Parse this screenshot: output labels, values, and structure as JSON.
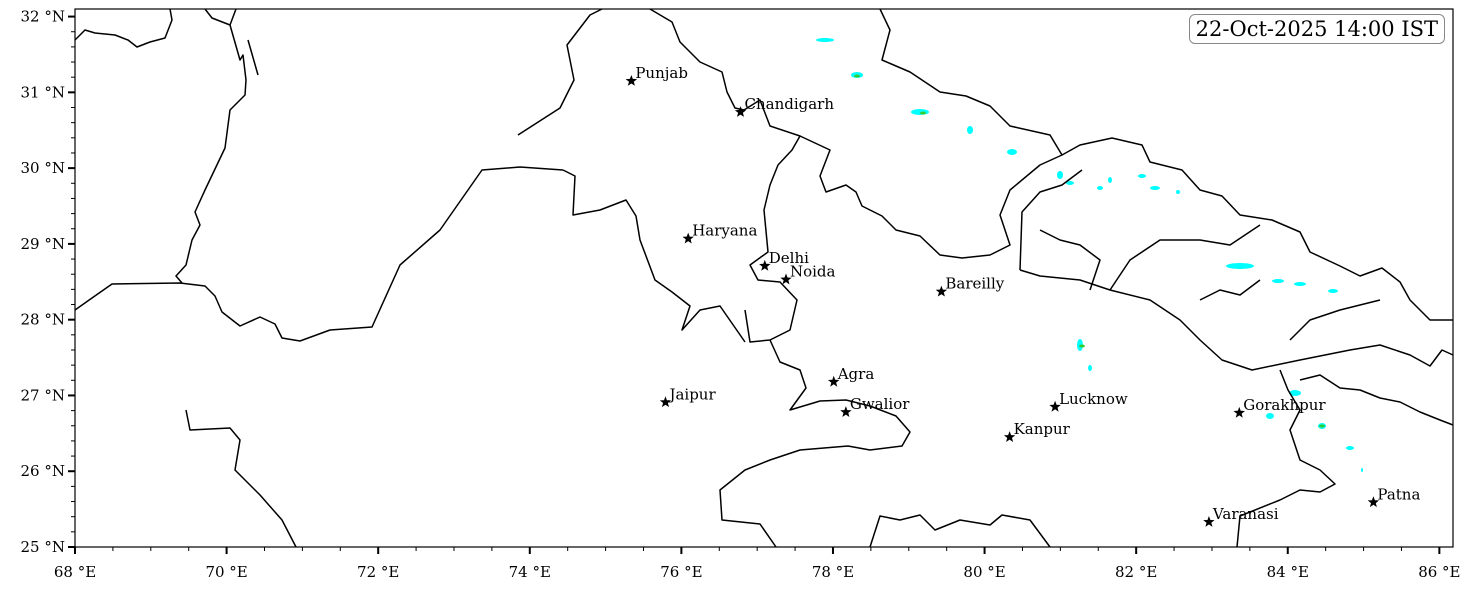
{
  "map": {
    "timestamp": "22-Oct-2025 14:00 IST",
    "extent": {
      "lon": [
        68,
        86.18
      ],
      "lat": [
        25,
        32.1
      ]
    },
    "x_ticks": [
      {
        "value": 68,
        "label": "68 °E"
      },
      {
        "value": 70,
        "label": "70 °E"
      },
      {
        "value": 72,
        "label": "72 °E"
      },
      {
        "value": 74,
        "label": "74 °E"
      },
      {
        "value": 76,
        "label": "76 °E"
      },
      {
        "value": 78,
        "label": "78 °E"
      },
      {
        "value": 80,
        "label": "80 °E"
      },
      {
        "value": 82,
        "label": "82 °E"
      },
      {
        "value": 84,
        "label": "84 °E"
      },
      {
        "value": 86,
        "label": "86 °E"
      }
    ],
    "y_ticks": [
      {
        "value": 25,
        "label": "25 °N"
      },
      {
        "value": 26,
        "label": "26 °N"
      },
      {
        "value": 27,
        "label": "27 °N"
      },
      {
        "value": 28,
        "label": "28 °N"
      },
      {
        "value": 29,
        "label": "29 °N"
      },
      {
        "value": 30,
        "label": "30 °N"
      },
      {
        "value": 31,
        "label": "31 °N"
      },
      {
        "value": 32,
        "label": "32 °N"
      }
    ],
    "cities": [
      {
        "name": "Punjab",
        "lon": 75.34,
        "lat": 31.15
      },
      {
        "name": "Chandigarh",
        "lon": 76.78,
        "lat": 30.74
      },
      {
        "name": "Haryana",
        "lon": 76.09,
        "lat": 29.07
      },
      {
        "name": "Delhi",
        "lon": 77.1,
        "lat": 28.71
      },
      {
        "name": "Noida",
        "lon": 77.38,
        "lat": 28.53
      },
      {
        "name": "Bareilly",
        "lon": 79.43,
        "lat": 28.37
      },
      {
        "name": "Agra",
        "lon": 78.01,
        "lat": 27.18
      },
      {
        "name": "Gwalior",
        "lon": 78.17,
        "lat": 26.78
      },
      {
        "name": "Jaipur",
        "lon": 75.79,
        "lat": 26.91
      },
      {
        "name": "Lucknow",
        "lon": 80.93,
        "lat": 26.85
      },
      {
        "name": "Kanpur",
        "lon": 80.33,
        "lat": 26.45
      },
      {
        "name": "Gorakhpur",
        "lon": 83.36,
        "lat": 26.77
      },
      {
        "name": "Varanasi",
        "lon": 82.96,
        "lat": 25.33
      },
      {
        "name": "Patna",
        "lon": 85.13,
        "lat": 25.59
      }
    ],
    "colors": {
      "rain_light": "#00ffff",
      "rain_moderate": "#33cc33",
      "border": "#000000"
    }
  }
}
